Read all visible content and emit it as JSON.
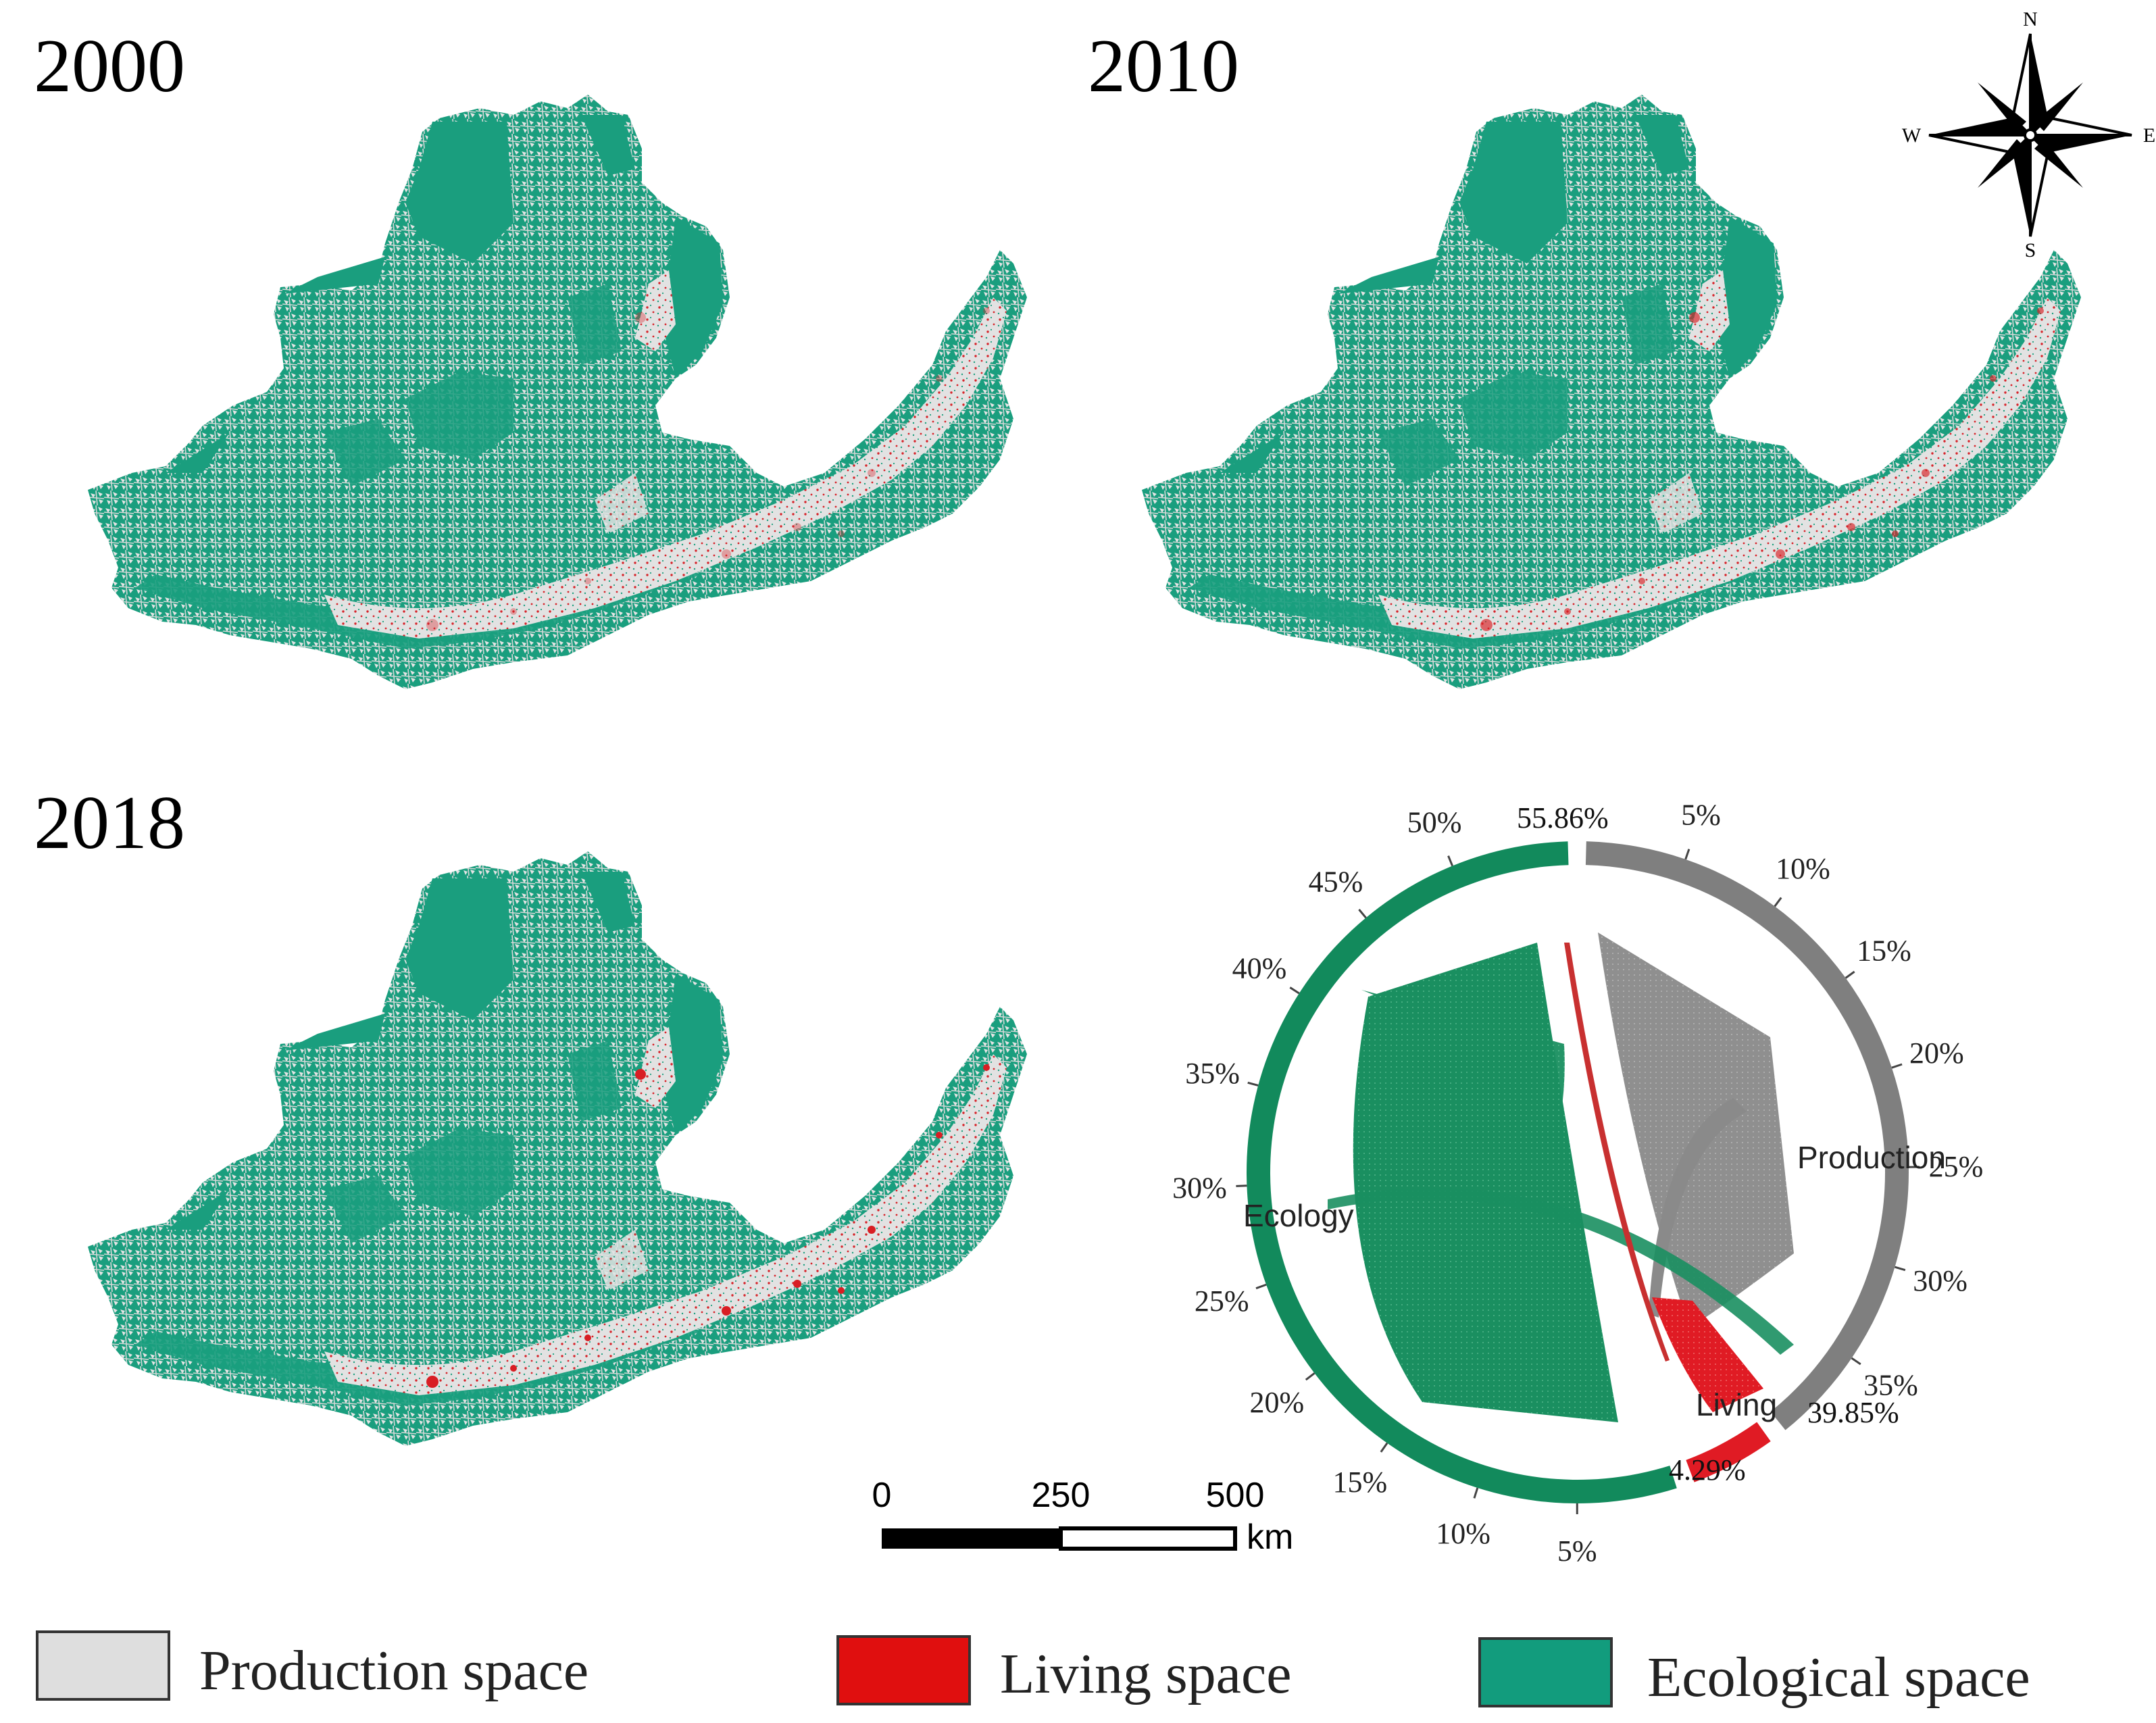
{
  "maps": [
    {
      "year": "2000",
      "living_intensity": 0.35
    },
    {
      "year": "2010",
      "living_intensity": 0.65
    },
    {
      "year": "2018",
      "living_intensity": 1.0
    }
  ],
  "compass": {
    "n": "N",
    "s": "S",
    "e": "E",
    "w": "W"
  },
  "scale_bar": {
    "ticks": [
      "0",
      "250",
      "500"
    ],
    "unit": "km"
  },
  "chord": {
    "groups": [
      {
        "label": "Production",
        "share": "39.85%",
        "color": "#7f7f7f"
      },
      {
        "label": "Living",
        "share": "4.29%",
        "color": "#e01b24"
      },
      {
        "label": "Ecology",
        "share": "55.86%",
        "color": "#128a5c"
      }
    ],
    "production_ticks": [
      "5%",
      "10%",
      "15%",
      "20%",
      "25%",
      "30%",
      "35%"
    ],
    "ecology_ticks": [
      "5%",
      "10%",
      "15%",
      "20%",
      "25%",
      "30%",
      "35%",
      "40%",
      "45%",
      "50%"
    ],
    "values": {
      "production": 39.85,
      "living": 4.29,
      "ecology": 55.86
    }
  },
  "legend": [
    {
      "label": "Production space",
      "color": "#dedede"
    },
    {
      "label": "Living space",
      "color": "#e00f0f"
    },
    {
      "label": "Ecological space",
      "color": "#129c7d"
    }
  ]
}
